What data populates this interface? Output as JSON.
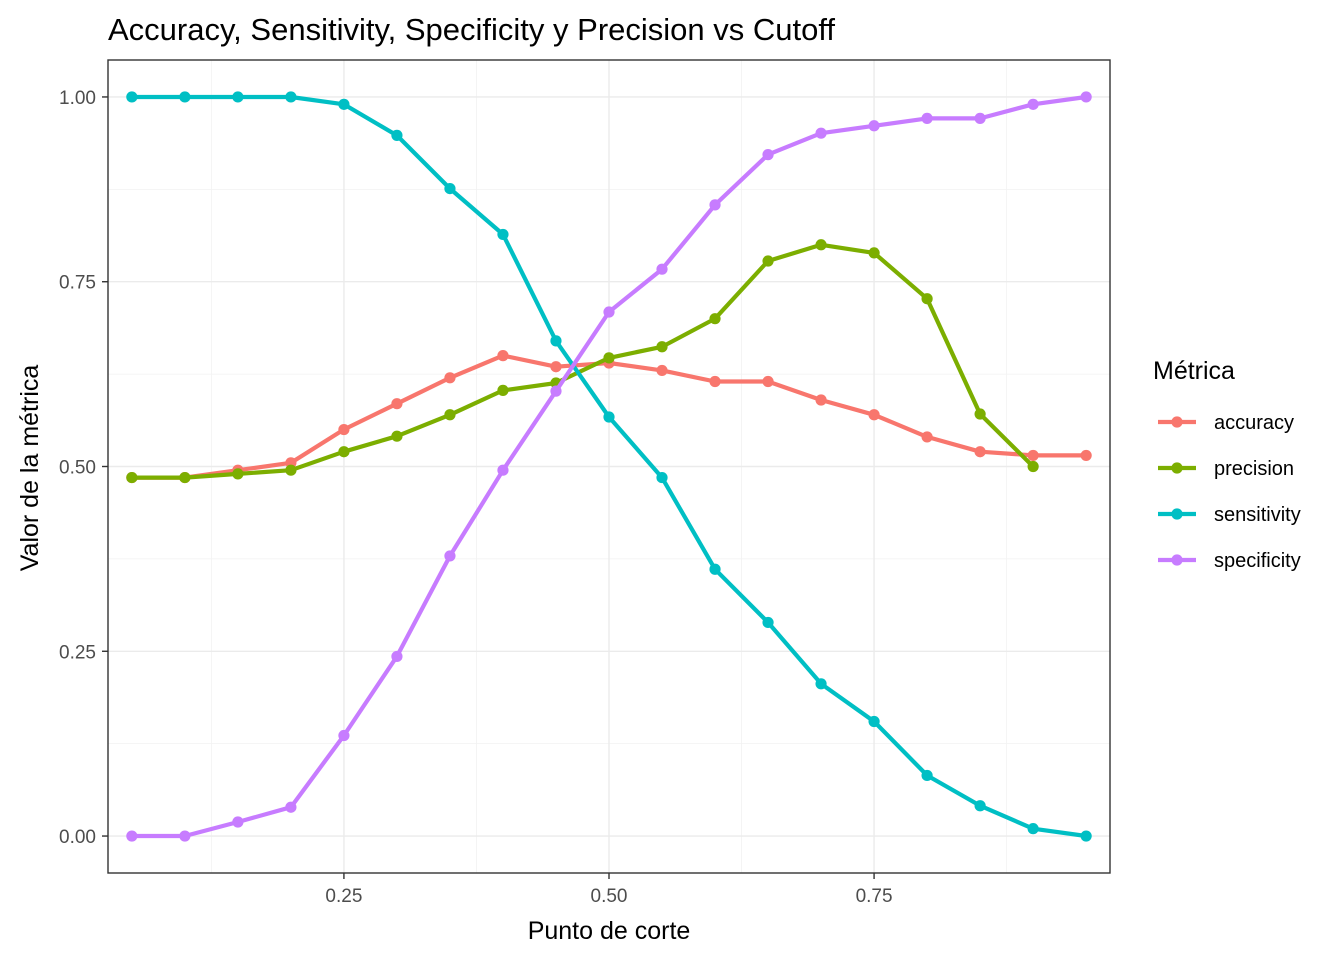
{
  "chart_data": {
    "type": "line",
    "title": "Accuracy, Sensitivity, Specificity y Precision vs Cutoff",
    "xlabel": "Punto de corte",
    "ylabel": "Valor de la métrica",
    "xlim": [
      0.0275,
      0.9725
    ],
    "ylim": [
      -0.05,
      1.05
    ],
    "xticks": [
      0.25,
      0.5,
      0.75
    ],
    "xtick_labels": [
      "0.25",
      "0.50",
      "0.75"
    ],
    "yticks": [
      0,
      0.25,
      0.5,
      0.75,
      1.0
    ],
    "ytick_labels": [
      "0.00",
      "0.25",
      "0.50",
      "0.75",
      "1.00"
    ],
    "grid": true,
    "legend": {
      "title": "Métrica",
      "position": "right"
    },
    "series": [
      {
        "name": "accuracy",
        "color": "#F8766D",
        "x": [
          0.05,
          0.1,
          0.15,
          0.2,
          0.25,
          0.3,
          0.35,
          0.4,
          0.45,
          0.5,
          0.55,
          0.6,
          0.65,
          0.7,
          0.75,
          0.8,
          0.85,
          0.9,
          0.95
        ],
        "y": [
          0.485,
          0.485,
          0.495,
          0.505,
          0.55,
          0.585,
          0.62,
          0.65,
          0.635,
          0.64,
          0.63,
          0.615,
          0.615,
          0.59,
          0.57,
          0.54,
          0.52,
          0.515,
          0.515
        ]
      },
      {
        "name": "precision",
        "color": "#7CAE00",
        "x": [
          0.05,
          0.1,
          0.15,
          0.2,
          0.25,
          0.3,
          0.35,
          0.4,
          0.45,
          0.5,
          0.55,
          0.6,
          0.65,
          0.7,
          0.75,
          0.8,
          0.85,
          0.9
        ],
        "y": [
          0.485,
          0.485,
          0.49,
          0.495,
          0.52,
          0.541,
          0.57,
          0.603,
          0.613,
          0.647,
          0.662,
          0.7,
          0.778,
          0.8,
          0.789,
          0.727,
          0.571,
          0.5
        ]
      },
      {
        "name": "sensitivity",
        "color": "#00BFC4",
        "x": [
          0.05,
          0.1,
          0.15,
          0.2,
          0.25,
          0.3,
          0.35,
          0.4,
          0.45,
          0.5,
          0.55,
          0.6,
          0.65,
          0.7,
          0.75,
          0.8,
          0.85,
          0.9,
          0.95
        ],
        "y": [
          1.0,
          1.0,
          1.0,
          1.0,
          0.99,
          0.948,
          0.876,
          0.814,
          0.67,
          0.567,
          0.485,
          0.361,
          0.289,
          0.206,
          0.155,
          0.082,
          0.041,
          0.01,
          0.0
        ]
      },
      {
        "name": "specificity",
        "color": "#C77CFF",
        "x": [
          0.05,
          0.1,
          0.15,
          0.2,
          0.25,
          0.3,
          0.35,
          0.4,
          0.45,
          0.5,
          0.55,
          0.6,
          0.65,
          0.7,
          0.75,
          0.8,
          0.85,
          0.9,
          0.95
        ],
        "y": [
          0.0,
          0.0,
          0.019,
          0.039,
          0.136,
          0.243,
          0.379,
          0.495,
          0.602,
          0.709,
          0.767,
          0.854,
          0.922,
          0.951,
          0.961,
          0.971,
          0.971,
          0.99,
          1.0
        ]
      }
    ]
  }
}
